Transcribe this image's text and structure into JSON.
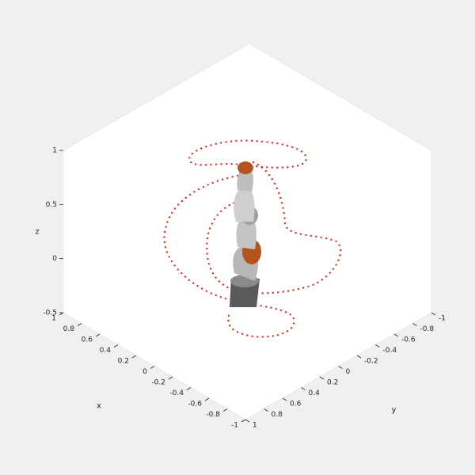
{
  "chart_data": {
    "type": "scatter3d",
    "xlabel": "x",
    "ylabel": "y",
    "zlabel": "z",
    "xlim": [
      -1,
      1
    ],
    "ylim": [
      -1,
      1
    ],
    "zlim": [
      -0.5,
      1
    ],
    "xticks": [
      -1,
      -0.8,
      -0.6,
      -0.4,
      -0.2,
      0,
      0.2,
      0.4,
      0.6,
      0.8,
      1
    ],
    "yticks": [
      -1,
      -0.8,
      -0.6,
      -0.4,
      -0.2,
      0,
      0.2,
      0.4,
      0.6,
      0.8,
      1
    ],
    "zticks": [
      -0.5,
      0,
      0.5,
      1
    ]
  }
}
